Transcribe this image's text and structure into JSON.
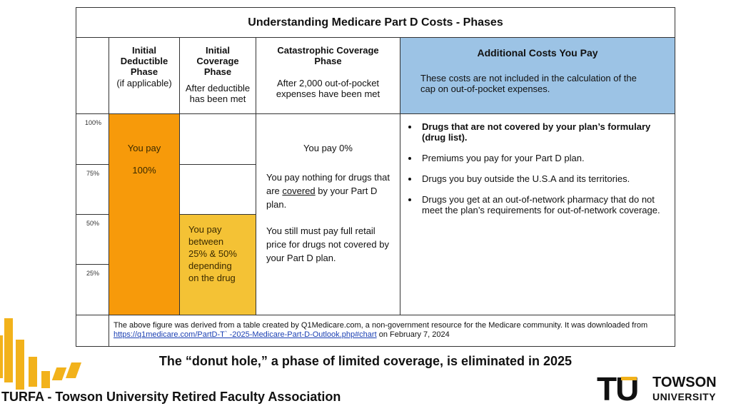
{
  "table": {
    "title": "Understanding Medicare Part D Costs - Phases",
    "phases": {
      "initial_deductible": {
        "title": "Initial Deductible Phase",
        "note": "(if applicable)"
      },
      "initial_coverage": {
        "title": "Initial Coverage Phase",
        "note": "After deductible has been met"
      },
      "catastrophic": {
        "title": "Catastrophic Coverage Phase",
        "note": "After 2,000 out-of-pocket expenses have been met"
      },
      "additional": {
        "title": "Additional Costs You Pay",
        "note": "These costs are not included in the calculation of the cap on out-of-pocket expenses."
      }
    },
    "percent_labels": [
      "100%",
      "75%",
      "50%",
      "25%"
    ],
    "deductible_pay": {
      "line1": "You pay",
      "line2": "100%"
    },
    "coverage_pay": "You pay between 25% & 50% depending on the drug",
    "catastrophic_pay": "You pay 0%",
    "catastrophic_text1_pre": "You pay nothing for drugs that are ",
    "catastrophic_text1_link": "covered",
    "catastrophic_text1_post": " by your Part D plan.",
    "catastrophic_text2": "You still must pay full retail price for drugs not covered by your Part D plan.",
    "additional_items": [
      "Drugs that are not covered by your plan’s formulary (drug list).",
      "Premiums you pay for your Part D plan.",
      "Drugs you buy outside the U.S.A and its territories.",
      "Drugs you get at an out-of-network pharmacy that do not meet the plan’s requirements for out-of-network coverage."
    ],
    "footnote_pre": "The above figure was derived from a table created  by Q1Medicare.com, a non-government resource for the Medicare community.  It was downloaded from ",
    "footnote_link": "https://q1medicare.com/PartD-T`  -2025-Medicare-Part-D-Outlook.php#chart",
    "footnote_post": " on February 7, 2024"
  },
  "caption": "The “donut hole,” a phase of limited coverage, is eliminated in 2025",
  "footer": "TURFA - Towson University Retired Faculty Association",
  "logo": {
    "mark": "TU",
    "line1": "TOWSON",
    "line2": "UNIVERSITY"
  },
  "colors": {
    "orange": "#f79a0a",
    "yellow": "#f4c235",
    "blue_header": "#9cc3e5",
    "gold_accent": "#f2b21b"
  }
}
